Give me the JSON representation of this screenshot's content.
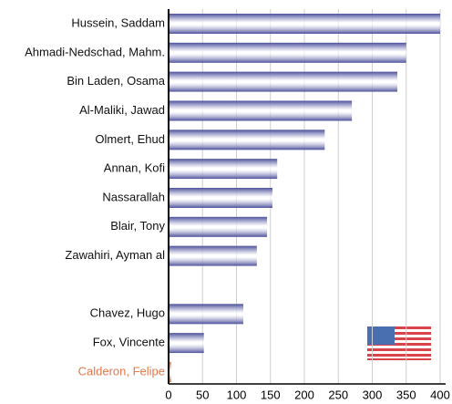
{
  "chart_data": {
    "type": "barh",
    "categories": [
      "Hussein, Saddam",
      "Ahmadi-Nedschad, Mahm.",
      "Bin Laden, Osama",
      "Al-Maliki, Jawad",
      "Olmert, Ehud",
      "Annan, Kofi",
      "Nassarallah",
      "Blair, Tony",
      "Zawahiri, Ayman al",
      null,
      "Chavez, Hugo",
      "Fox, Vincente",
      "Calderon, Felipe"
    ],
    "values": [
      400,
      350,
      337,
      270,
      230,
      160,
      153,
      145,
      130,
      null,
      110,
      52,
      4
    ],
    "colors": [
      "#4b4f9a",
      "#4b4f9a",
      "#4b4f9a",
      "#4b4f9a",
      "#4b4f9a",
      "#4b4f9a",
      "#4b4f9a",
      "#4b4f9a",
      "#4b4f9a",
      null,
      "#4b4f9a",
      "#4b4f9a",
      "#e0784a"
    ],
    "label_colors": [
      "#111111",
      "#111111",
      "#111111",
      "#111111",
      "#111111",
      "#111111",
      "#111111",
      "#111111",
      "#111111",
      null,
      "#111111",
      "#111111",
      "#e0784a"
    ],
    "xlim": [
      0,
      400
    ],
    "xticks": [
      0,
      50,
      100,
      150,
      200,
      250,
      300,
      350,
      400
    ],
    "grid": true
  }
}
